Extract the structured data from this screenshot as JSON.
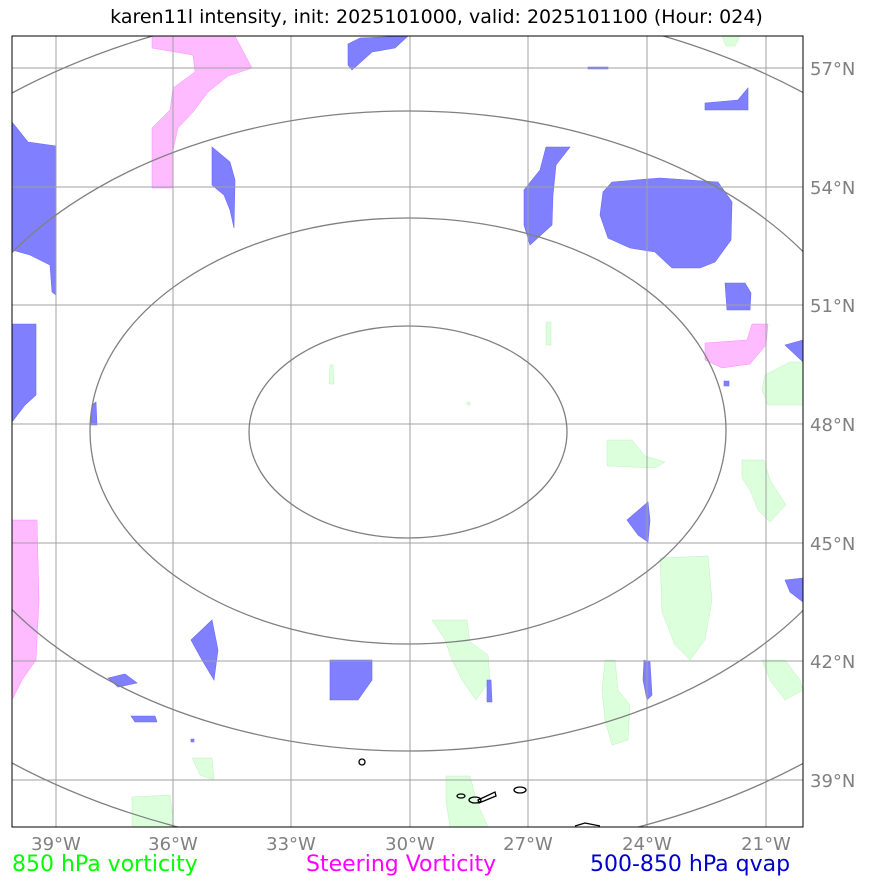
{
  "title": "karen11l intensity, init: 2025101000, valid: 2025101100 (Hour: 024)",
  "lon_labels": [
    "39°W",
    "36°W",
    "33°W",
    "30°W",
    "27°W",
    "24°W",
    "21°W"
  ],
  "lat_labels": [
    "57°N",
    "54°N",
    "51°N",
    "48°N",
    "45°N",
    "42°N",
    "39°N"
  ],
  "legend": {
    "green": "850 hPa vorticity",
    "magenta": "Steering Vorticity",
    "blue": "500-850 hPa qvap"
  },
  "colors": {
    "green": "#00ff00",
    "magenta": "#ff00ff",
    "blue": "#0000cc",
    "green_fill": "#dcffdc",
    "magenta_fill": "#ffbbff",
    "blue_fill": "#8080ff",
    "grid": "#808080"
  }
}
